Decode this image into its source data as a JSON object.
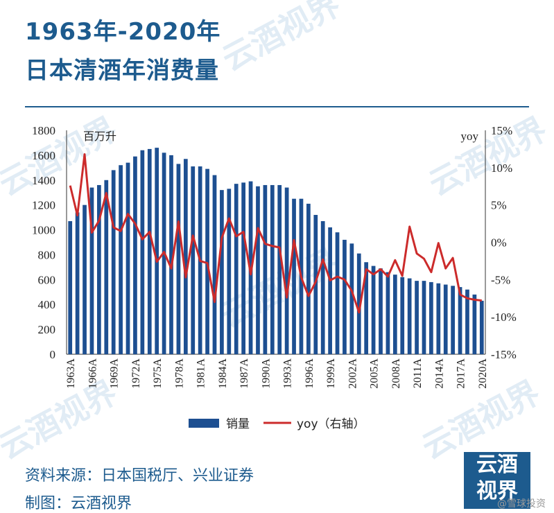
{
  "header": {
    "title_line1": "1963年-2020年",
    "title_line2": "日本清酒年消费量"
  },
  "footer": {
    "source": "资料来源：日本国税厅、兴业证券",
    "maker": "制图：云酒视界"
  },
  "logo": {
    "line1": "云酒",
    "line2": "视界"
  },
  "watermark_text": "云酒视界",
  "credit": "@雪球投资",
  "colors": {
    "bar": "#1d4f91",
    "line": "#cc2b2b",
    "title": "#1d5b8e"
  },
  "chart_data": {
    "type": "bar",
    "left_unit": "百万升",
    "right_unit": "yoy",
    "ylim": [
      0,
      1800
    ],
    "ylim_right": [
      -15,
      15
    ],
    "yticks": [
      0,
      200,
      400,
      600,
      800,
      1000,
      1200,
      1400,
      1600,
      1800
    ],
    "yticks_right": [
      "15%",
      "10%",
      "5%",
      "0%",
      "-5%",
      "-10%",
      "-15%"
    ],
    "categories": [
      "1963A",
      "1964A",
      "1965A",
      "1966A",
      "1967A",
      "1968A",
      "1969A",
      "1970A",
      "1971A",
      "1972A",
      "1973A",
      "1974A",
      "1975A",
      "1976A",
      "1977A",
      "1978A",
      "1979A",
      "1980A",
      "1981A",
      "1982A",
      "1983A",
      "1984A",
      "1985A",
      "1986A",
      "1987A",
      "1988A",
      "1989A",
      "1990A",
      "1991A",
      "1992A",
      "1993A",
      "1994A",
      "1995A",
      "1996A",
      "1997A",
      "1998A",
      "1999A",
      "2000A",
      "2001A",
      "2002A",
      "2003A",
      "2004A",
      "2005A",
      "2006A",
      "2007A",
      "2008A",
      "2009A",
      "2010A",
      "2011A",
      "2012A",
      "2013A",
      "2014A",
      "2015A",
      "2016A",
      "2017A",
      "2018A",
      "2019A",
      "2020A"
    ],
    "x_tick_labels": [
      "1963A",
      "1966A",
      "1969A",
      "1972A",
      "1975A",
      "1978A",
      "1981A",
      "1984A",
      "1987A",
      "1990A",
      "1993A",
      "1996A",
      "1999A",
      "2002A",
      "2005A",
      "2008A",
      "2011A",
      "2014A",
      "2017A",
      "2020A"
    ],
    "series": [
      {
        "name": "销量",
        "type": "bar",
        "values": [
          1070,
          1140,
          1200,
          1340,
          1360,
          1400,
          1480,
          1520,
          1540,
          1590,
          1640,
          1650,
          1660,
          1620,
          1600,
          1530,
          1570,
          1510,
          1510,
          1490,
          1440,
          1320,
          1330,
          1370,
          1380,
          1390,
          1350,
          1360,
          1360,
          1360,
          1340,
          1250,
          1250,
          1210,
          1120,
          1070,
          1020,
          980,
          920,
          890,
          810,
          740,
          710,
          690,
          660,
          640,
          620,
          610,
          590,
          590,
          580,
          570,
          560,
          550,
          540,
          520,
          480,
          430
        ]
      },
      {
        "name": "yoy（右轴）",
        "type": "line",
        "axis": "right",
        "values": [
          7.6,
          3.6,
          11.8,
          1.3,
          2.9,
          6.6,
          2.0,
          1.5,
          3.8,
          2.5,
          0.4,
          1.4,
          -2.6,
          -1.3,
          -3.5,
          2.8,
          -4.7,
          0.9,
          -2.5,
          -2.8,
          -8.0,
          0.6,
          3.2,
          0.8,
          1.4,
          -4.3,
          1.9,
          -0.2,
          -0.5,
          -0.7,
          -7.4,
          0.3,
          -4.7,
          -7.2,
          -5.3,
          -2.3,
          -5.1,
          -4.6,
          -5.0,
          -6.5,
          -9.4,
          -3.6,
          -4.3,
          -3.6,
          -4.6,
          -2.4,
          -4.5,
          2.1,
          -1.5,
          -2.2,
          -4.0,
          -0.1,
          -3.5,
          -2.1,
          -7.0,
          -7.5,
          -7.7,
          -7.8
        ]
      }
    ]
  }
}
